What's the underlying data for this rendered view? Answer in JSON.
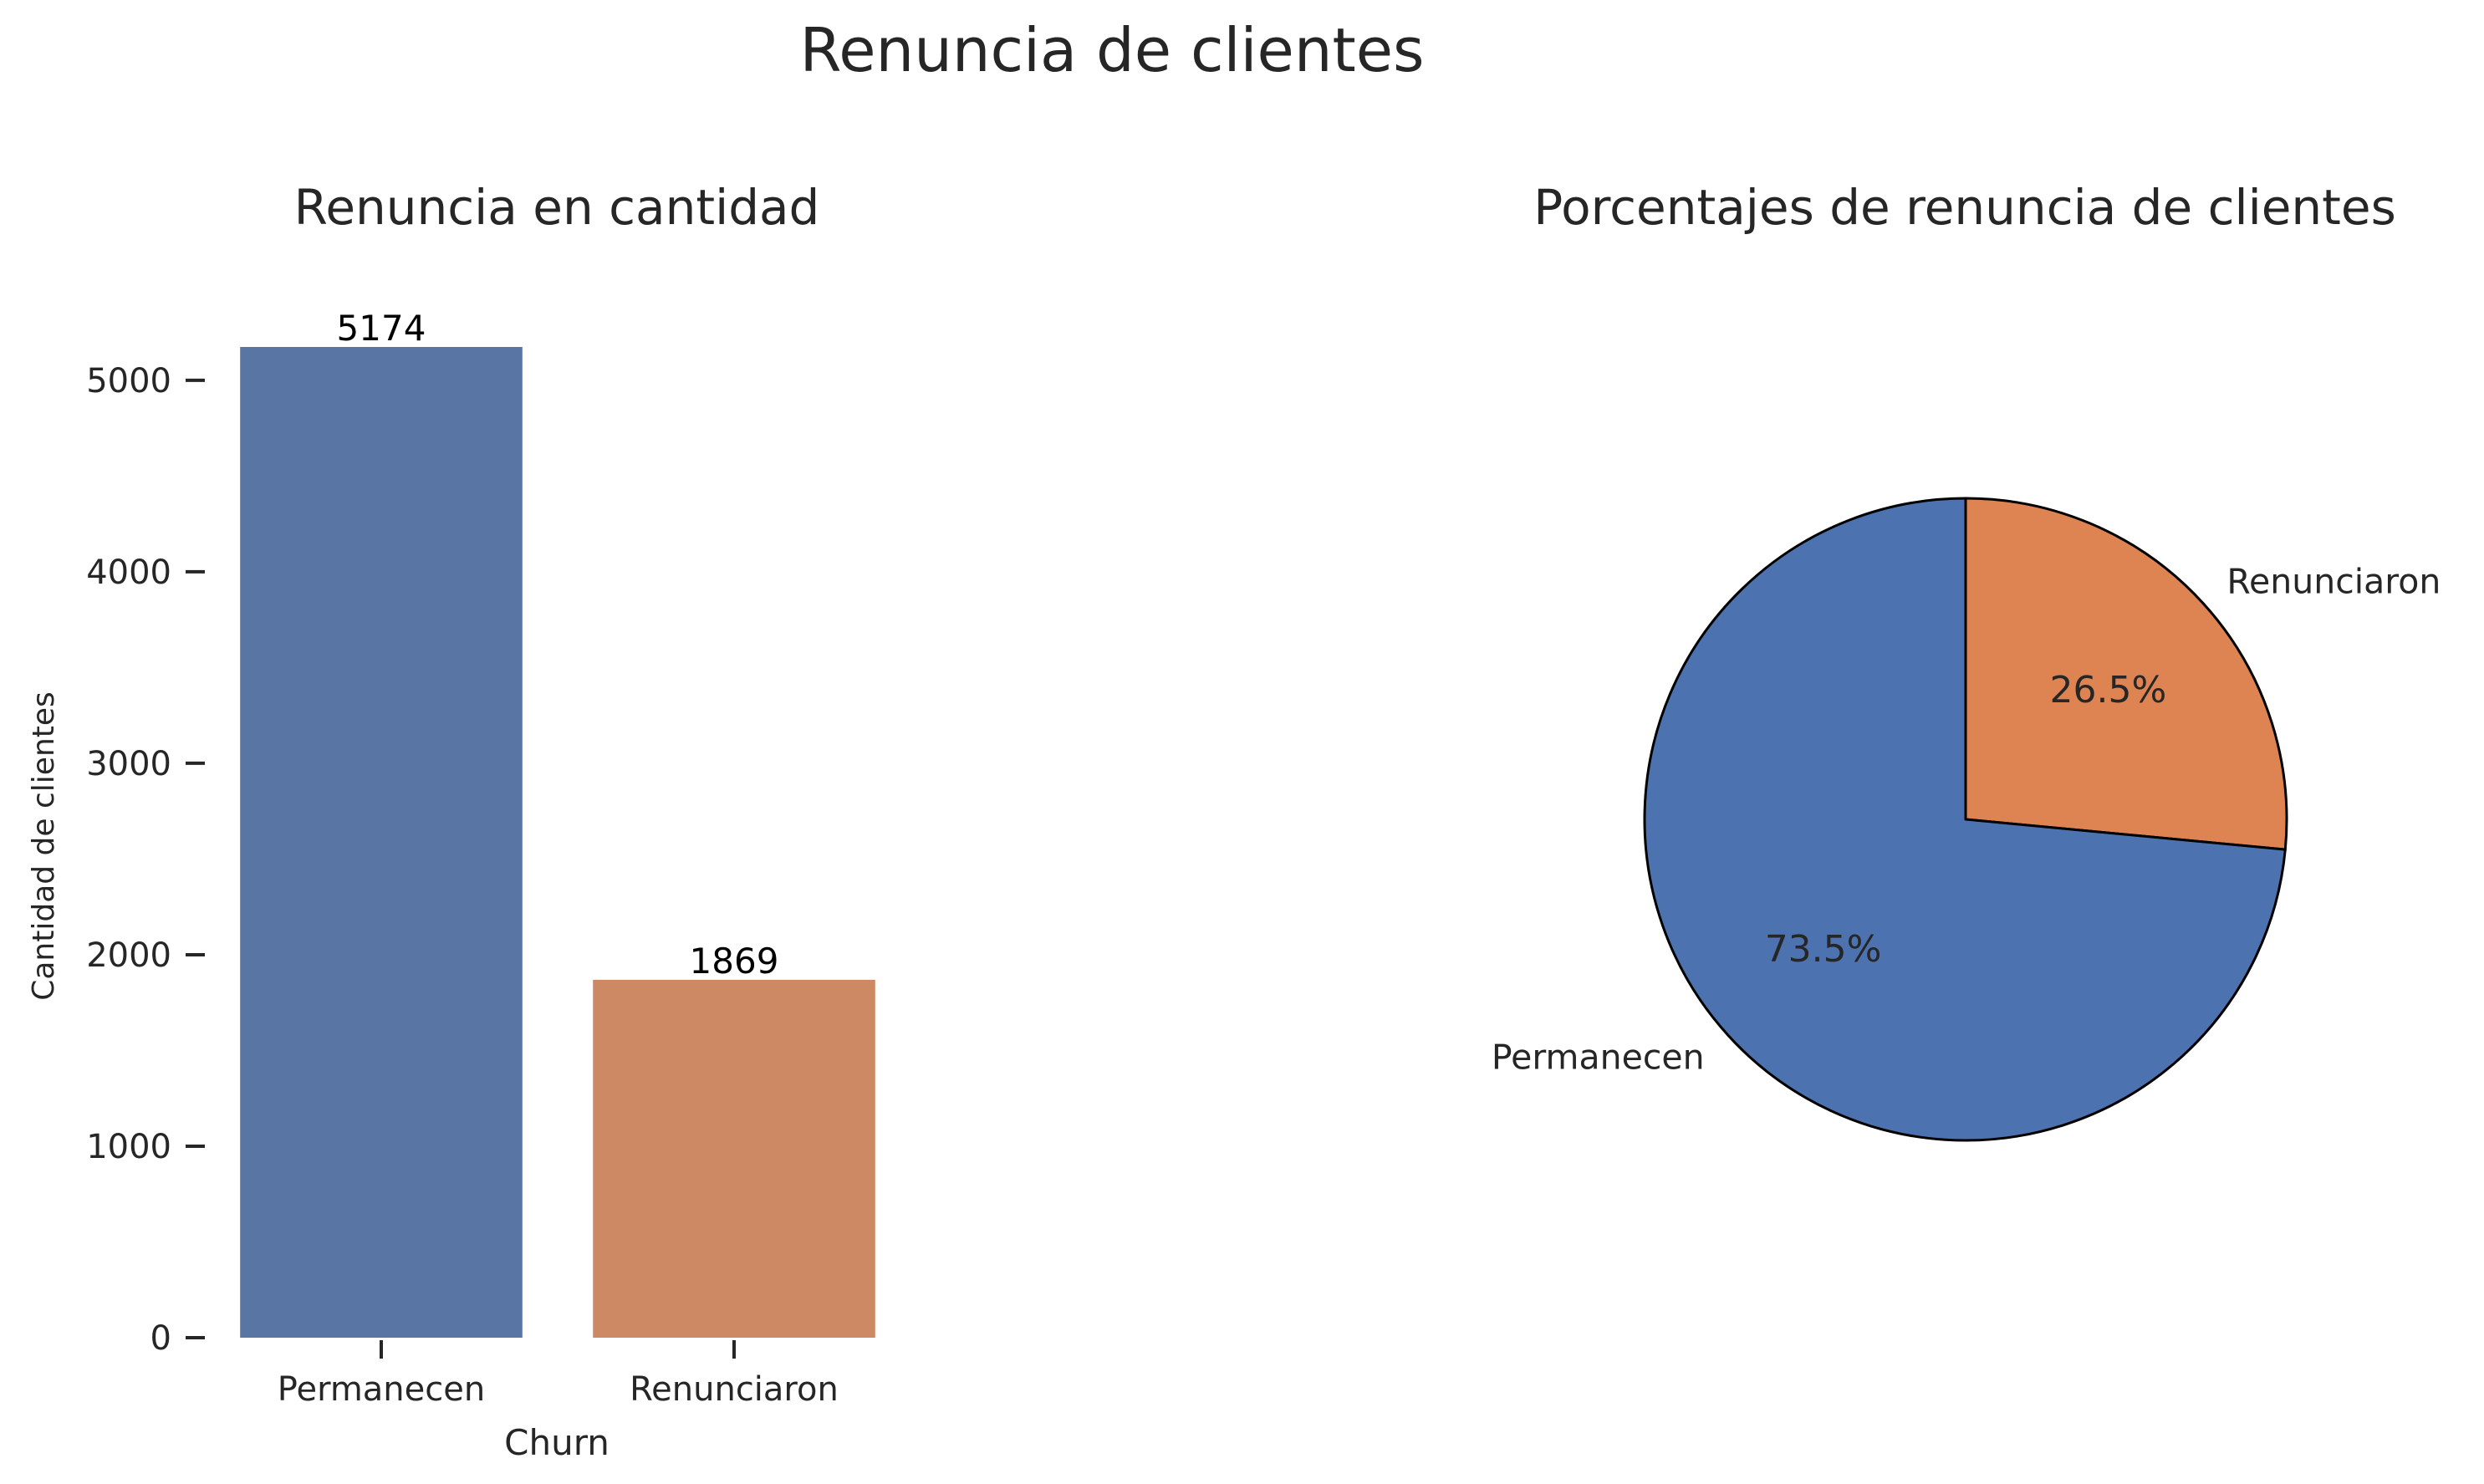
{
  "figure_title": "Renuncia de clientes",
  "chart_data": [
    {
      "type": "bar",
      "title": "Renuncia en cantidad",
      "xlabel": "Churn",
      "ylabel": "Cantidad de clientes",
      "categories": [
        "Permanecen",
        "Renunciaron"
      ],
      "values": [
        5174,
        1869
      ],
      "data_labels": [
        "5174",
        "1869"
      ],
      "yticks": [
        0,
        1000,
        2000,
        3000,
        4000,
        5000
      ],
      "ylim": [
        0,
        5174
      ],
      "colors": [
        "#5975a4",
        "#cc8963"
      ],
      "grid": false
    },
    {
      "type": "pie",
      "title": "Porcentajes de renuncia de clientes",
      "labels": [
        "Renunciaron",
        "Permanecen"
      ],
      "values": [
        26.5,
        73.5
      ],
      "pct_labels": [
        "26.5%",
        "73.5%"
      ],
      "colors": [
        "#dd8452",
        "#4c72b0"
      ],
      "start_angle_deg": 90,
      "direction": "clockwise",
      "edgecolor": "#000000"
    }
  ]
}
